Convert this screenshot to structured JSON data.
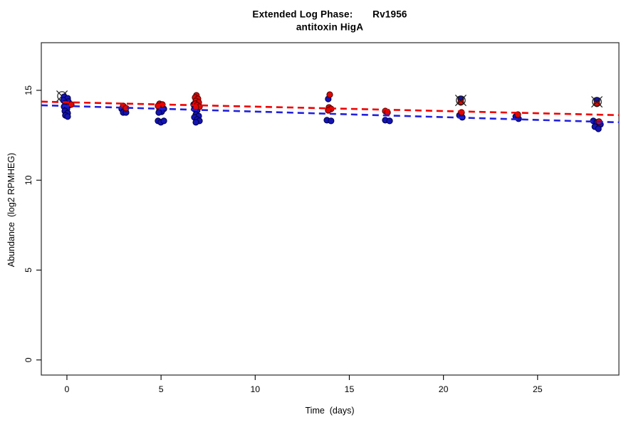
{
  "figure": {
    "title_line1": "Extended Log Phase:       Rv1956",
    "title_line2": "antitoxin HigA",
    "xlabel": "Time  (days)",
    "ylabel": "Abundance  (log2 RPMHEG)",
    "background": "#ffffff",
    "axis_color": "#000000"
  },
  "chart_data": {
    "type": "scatter",
    "title": "Extended Log Phase: Rv1956 antitoxin HigA",
    "xlabel": "Time (days)",
    "ylabel": "Abundance (log2 RPMHEG)",
    "xlim": [
      -1.36,
      29.32
    ],
    "ylim": [
      -0.84,
      17.65
    ],
    "x_ticks": [
      0,
      5,
      10,
      15,
      20,
      25
    ],
    "y_ticks": [
      0,
      5,
      10,
      15
    ],
    "grid": false,
    "legend": "none",
    "series": [
      {
        "name": "red-series",
        "color": "#e10600",
        "edge": "#4a0000",
        "points": [
          [
            0.23,
            14.21
          ],
          [
            2.99,
            14.13
          ],
          [
            3.14,
            14.01
          ],
          [
            4.92,
            14.25
          ],
          [
            5.07,
            14.21
          ],
          [
            4.84,
            14.13
          ],
          [
            6.88,
            14.72
          ],
          [
            6.81,
            14.6
          ],
          [
            6.96,
            14.53
          ],
          [
            6.85,
            14.41
          ],
          [
            7.0,
            14.33
          ],
          [
            6.81,
            14.25
          ],
          [
            6.92,
            14.17
          ],
          [
            7.04,
            14.09
          ],
          [
            6.85,
            14.05
          ],
          [
            13.96,
            14.76
          ],
          [
            13.92,
            14.05
          ],
          [
            14.03,
            13.97
          ],
          [
            13.88,
            13.89
          ],
          [
            16.91,
            13.85
          ],
          [
            17.03,
            13.77
          ],
          [
            20.92,
            14.33
          ],
          [
            20.96,
            13.77
          ],
          [
            23.95,
            13.65
          ],
          [
            28.15,
            14.25
          ],
          [
            28.26,
            13.26
          ]
        ]
      },
      {
        "name": "blue-series",
        "color": "#1414b4",
        "edge": "#000042",
        "points": [
          [
            -0.15,
            14.64
          ],
          [
            0.04,
            14.56
          ],
          [
            -0.19,
            14.45
          ],
          [
            0.08,
            14.37
          ],
          [
            -0.08,
            14.29
          ],
          [
            0.11,
            14.17
          ],
          [
            -0.15,
            14.09
          ],
          [
            0.0,
            13.97
          ],
          [
            -0.11,
            13.85
          ],
          [
            0.04,
            13.73
          ],
          [
            -0.08,
            13.61
          ],
          [
            0.04,
            13.54
          ],
          [
            2.91,
            13.97
          ],
          [
            3.06,
            13.89
          ],
          [
            2.99,
            13.77
          ],
          [
            3.14,
            13.77
          ],
          [
            5.03,
            14.05
          ],
          [
            5.15,
            13.97
          ],
          [
            4.92,
            13.93
          ],
          [
            5.03,
            13.81
          ],
          [
            4.88,
            13.77
          ],
          [
            4.84,
            13.3
          ],
          [
            4.99,
            13.22
          ],
          [
            5.15,
            13.3
          ],
          [
            6.73,
            14.21
          ],
          [
            6.88,
            14.09
          ],
          [
            6.77,
            13.97
          ],
          [
            6.92,
            13.89
          ],
          [
            6.85,
            13.65
          ],
          [
            7.0,
            13.57
          ],
          [
            6.77,
            13.5
          ],
          [
            6.92,
            13.38
          ],
          [
            7.04,
            13.3
          ],
          [
            6.85,
            13.22
          ],
          [
            13.88,
            14.52
          ],
          [
            13.81,
            13.34
          ],
          [
            14.03,
            13.3
          ],
          [
            16.91,
            13.34
          ],
          [
            17.14,
            13.3
          ],
          [
            20.92,
            14.52
          ],
          [
            20.85,
            13.61
          ],
          [
            21.0,
            13.5
          ],
          [
            23.84,
            13.54
          ],
          [
            23.99,
            13.42
          ],
          [
            28.15,
            14.45
          ],
          [
            27.96,
            13.3
          ],
          [
            28.15,
            13.22
          ],
          [
            28.34,
            13.1
          ],
          [
            28.04,
            12.98
          ],
          [
            28.23,
            12.86
          ]
        ]
      }
    ],
    "trend_lines": [
      {
        "name": "blue-trend",
        "color": "#2020dd",
        "style": "dashed",
        "width": 2.6,
        "x1": -1.36,
        "y1": 14.17,
        "x2": 29.32,
        "y2": 13.22
      },
      {
        "name": "red-trend",
        "color": "#f00000",
        "style": "dashed",
        "width": 2.6,
        "x1": -1.36,
        "y1": 14.37,
        "x2": 29.32,
        "y2": 13.62
      }
    ],
    "outlier_markers": [
      {
        "x": -0.26,
        "y": 14.68,
        "layer": "back"
      },
      {
        "x": 20.92,
        "y": 14.44,
        "layer": "front"
      },
      {
        "x": 28.15,
        "y": 14.36,
        "layer": "front"
      }
    ]
  }
}
